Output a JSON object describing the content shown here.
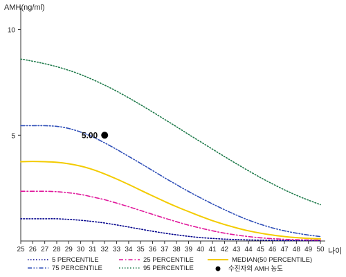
{
  "chart_data": {
    "type": "line",
    "ylabel": "AMH(ng/ml)",
    "xlabel": "나이",
    "xlim": [
      25,
      50
    ],
    "ylim": [
      0,
      11
    ],
    "x_ticks": [
      25,
      26,
      27,
      28,
      29,
      30,
      31,
      32,
      33,
      34,
      35,
      36,
      37,
      38,
      39,
      40,
      41,
      42,
      43,
      44,
      45,
      46,
      47,
      48,
      49,
      50
    ],
    "y_ticks": [
      5,
      10
    ],
    "grid": false,
    "legend_position": "bottom",
    "x": [
      25,
      26,
      27,
      28,
      29,
      30,
      31,
      32,
      33,
      34,
      35,
      36,
      37,
      38,
      39,
      40,
      41,
      42,
      43,
      44,
      45,
      46,
      47,
      48,
      49,
      50
    ],
    "series": [
      {
        "name": "5 PERCENTILE",
        "color": "#00008b",
        "dash": "dot",
        "values": [
          1.05,
          1.05,
          1.05,
          1.05,
          1.02,
          0.98,
          0.92,
          0.85,
          0.76,
          0.66,
          0.56,
          0.46,
          0.37,
          0.29,
          0.22,
          0.16,
          0.12,
          0.09,
          0.07,
          0.05,
          0.04,
          0.03,
          0.02,
          0.02,
          0.02,
          0.02
        ]
      },
      {
        "name": "25 PERCENTILE",
        "color": "#e0179b",
        "dash": "dashdot",
        "values": [
          2.35,
          2.35,
          2.35,
          2.33,
          2.28,
          2.2,
          2.08,
          1.95,
          1.79,
          1.62,
          1.44,
          1.26,
          1.08,
          0.91,
          0.75,
          0.61,
          0.48,
          0.37,
          0.28,
          0.21,
          0.15,
          0.11,
          0.08,
          0.06,
          0.05,
          0.04
        ]
      },
      {
        "name": "MEDIAN(50 PERCENTILE)",
        "color": "#f3cb00",
        "dash": "solid",
        "values": [
          3.75,
          3.76,
          3.75,
          3.72,
          3.65,
          3.54,
          3.38,
          3.17,
          2.93,
          2.67,
          2.4,
          2.13,
          1.87,
          1.62,
          1.39,
          1.17,
          0.96,
          0.78,
          0.62,
          0.48,
          0.37,
          0.28,
          0.21,
          0.16,
          0.12,
          0.1
        ]
      },
      {
        "name": "75 PERCENTILE",
        "color": "#2f4fb8",
        "dash": "dashdotdot",
        "values": [
          5.45,
          5.45,
          5.45,
          5.42,
          5.32,
          5.15,
          4.92,
          4.64,
          4.33,
          4.0,
          3.67,
          3.33,
          2.99,
          2.66,
          2.34,
          2.04,
          1.75,
          1.48,
          1.22,
          0.99,
          0.79,
          0.62,
          0.48,
          0.37,
          0.28,
          0.21
        ]
      },
      {
        "name": "95 PERCENTILE",
        "color": "#1e7a4a",
        "dash": "dot",
        "values": [
          8.6,
          8.5,
          8.38,
          8.24,
          8.07,
          7.87,
          7.63,
          7.37,
          7.08,
          6.77,
          6.44,
          6.1,
          5.75,
          5.4,
          5.04,
          4.69,
          4.34,
          3.99,
          3.65,
          3.32,
          3.0,
          2.7,
          2.42,
          2.16,
          1.93,
          1.72
        ]
      }
    ],
    "points": [
      {
        "name": "수진자의 AMH 농도",
        "x": 32,
        "y": 5.0,
        "label": "5.00",
        "color": "#000000"
      }
    ]
  }
}
